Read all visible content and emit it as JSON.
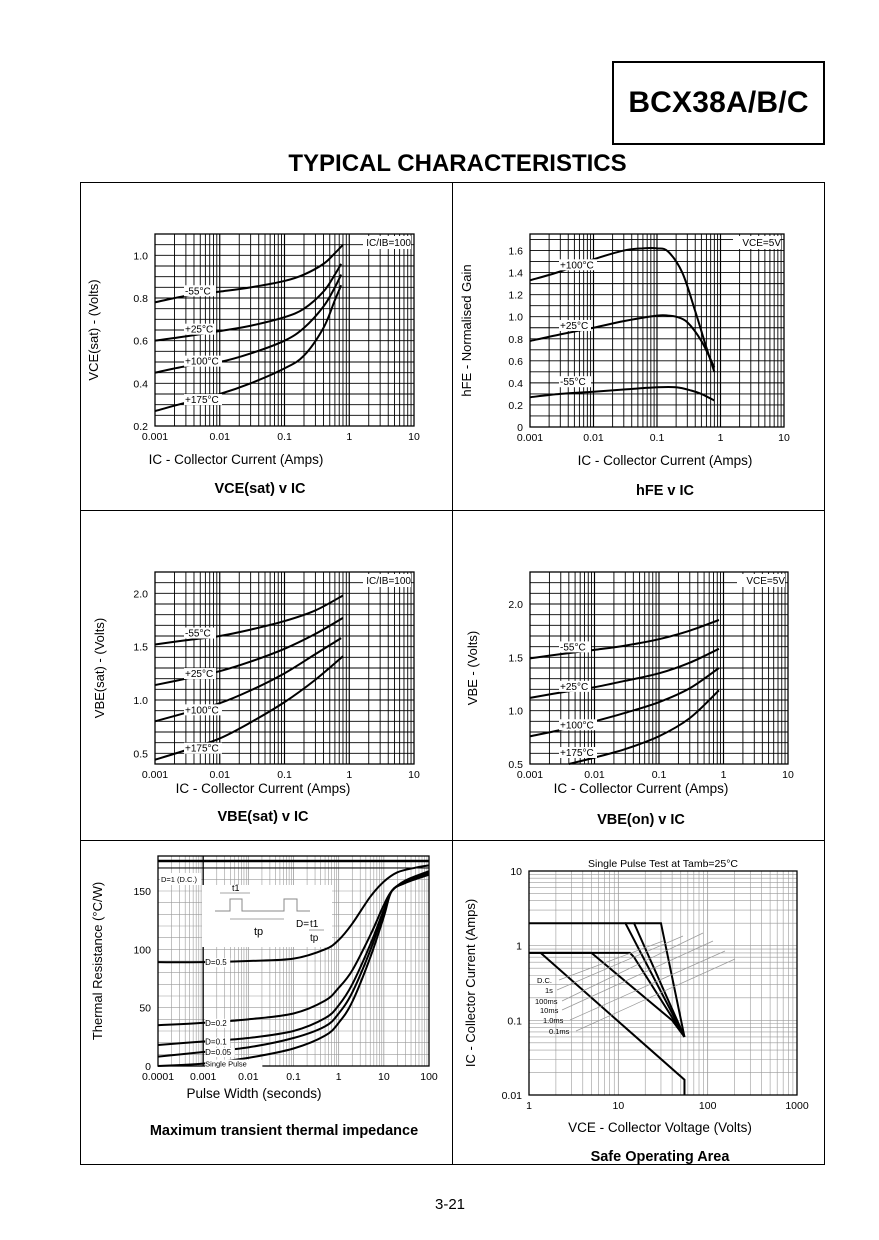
{
  "header": {
    "part_number": "BCX38A/B/C",
    "section_title": "TYPICAL CHARACTERISTICS"
  },
  "footer": {
    "page_number": "3-21"
  },
  "chart_data": [
    {
      "id": "vcesat",
      "type": "line",
      "title": "VCE(sat) v IC",
      "xlabel": "IC - Collector Current (Amps)",
      "ylabel": "VCE(sat) - (Volts)",
      "xscale": "log",
      "xlim": [
        0.001,
        10
      ],
      "ylim": [
        0.2,
        1.1
      ],
      "xticks": [
        "0.001",
        "0.01",
        "0.1",
        "1",
        "10"
      ],
      "yticks": [
        "0.2",
        "0.4",
        "0.6",
        "0.8",
        "1.0"
      ],
      "ytick_values": [
        0.2,
        0.4,
        0.6,
        0.8,
        1.0
      ],
      "annotation": "IC/IB=100",
      "grid": true,
      "series": [
        {
          "name": "-55°C",
          "x": [
            0.001,
            0.003,
            0.01,
            0.03,
            0.1,
            0.2,
            0.4,
            0.6,
            0.8
          ],
          "y": [
            0.78,
            0.81,
            0.83,
            0.85,
            0.88,
            0.91,
            0.96,
            1.01,
            1.05
          ]
        },
        {
          "name": "+25°C",
          "x": [
            0.001,
            0.003,
            0.01,
            0.03,
            0.1,
            0.2,
            0.4,
            0.6,
            0.75
          ],
          "y": [
            0.6,
            0.62,
            0.645,
            0.67,
            0.71,
            0.75,
            0.83,
            0.91,
            0.96
          ]
        },
        {
          "name": "+100°C",
          "x": [
            0.001,
            0.003,
            0.01,
            0.03,
            0.1,
            0.2,
            0.4,
            0.6,
            0.75
          ],
          "y": [
            0.45,
            0.48,
            0.5,
            0.54,
            0.6,
            0.66,
            0.76,
            0.85,
            0.91
          ]
        },
        {
          "name": "+175°C",
          "x": [
            0.001,
            0.003,
            0.01,
            0.03,
            0.1,
            0.2,
            0.4,
            0.6,
            0.75
          ],
          "y": [
            0.27,
            0.31,
            0.35,
            0.4,
            0.47,
            0.53,
            0.66,
            0.79,
            0.86
          ]
        }
      ]
    },
    {
      "id": "hfe",
      "type": "line",
      "title": "hFE v IC",
      "xlabel": "IC - Collector Current (Amps)",
      "ylabel": "hFE - Normalised Gain",
      "xscale": "log",
      "xlim": [
        0.001,
        10
      ],
      "ylim": [
        0,
        1.75
      ],
      "xticks": [
        "0.001",
        "0.01",
        "0.1",
        "1",
        "10"
      ],
      "yticks": [
        "0",
        "0.2",
        "0.4",
        "0.6",
        "0.8",
        "1.0",
        "1.2",
        "1.4",
        "1.6"
      ],
      "ytick_values": [
        0,
        0.2,
        0.4,
        0.6,
        0.8,
        1.0,
        1.2,
        1.4,
        1.6
      ],
      "annotation": "VCE=5V",
      "grid": true,
      "series": [
        {
          "name": "+100°C",
          "x": [
            0.001,
            0.003,
            0.01,
            0.03,
            0.06,
            0.1,
            0.15,
            0.25,
            0.4,
            0.6,
            0.8
          ],
          "y": [
            1.33,
            1.41,
            1.52,
            1.6,
            1.62,
            1.62,
            1.59,
            1.4,
            1.05,
            0.72,
            0.5
          ]
        },
        {
          "name": "+25°C",
          "x": [
            0.001,
            0.003,
            0.01,
            0.03,
            0.1,
            0.15,
            0.2,
            0.3,
            0.5,
            0.8
          ],
          "y": [
            0.78,
            0.84,
            0.9,
            0.96,
            1.01,
            1.01,
            1.0,
            0.95,
            0.78,
            0.54
          ]
        },
        {
          "name": "-55°C",
          "x": [
            0.001,
            0.003,
            0.01,
            0.03,
            0.1,
            0.2,
            0.35,
            0.5,
            0.8
          ],
          "y": [
            0.27,
            0.3,
            0.32,
            0.34,
            0.36,
            0.36,
            0.33,
            0.3,
            0.24
          ]
        }
      ]
    },
    {
      "id": "vbesat",
      "type": "line",
      "title": "VBE(sat) v IC",
      "xlabel": "IC - Collector Current (Amps)",
      "ylabel": "VBE(sat) - (Volts)",
      "xscale": "log",
      "xlim": [
        0.001,
        10
      ],
      "ylim": [
        0.4,
        2.2
      ],
      "xticks": [
        "0.001",
        "0.01",
        "0.1",
        "1",
        "10"
      ],
      "yticks": [
        "0.5",
        "1.0",
        "1.5",
        "2.0"
      ],
      "ytick_values": [
        0.5,
        1.0,
        1.5,
        2.0
      ],
      "annotation": "IC/IB=100",
      "grid": true,
      "series": [
        {
          "name": "-55°C",
          "x": [
            0.001,
            0.003,
            0.01,
            0.03,
            0.1,
            0.3,
            0.8
          ],
          "y": [
            1.52,
            1.56,
            1.6,
            1.66,
            1.74,
            1.84,
            1.98
          ]
        },
        {
          "name": "+25°C",
          "x": [
            0.001,
            0.003,
            0.01,
            0.03,
            0.1,
            0.3,
            0.8
          ],
          "y": [
            1.14,
            1.2,
            1.27,
            1.36,
            1.48,
            1.62,
            1.77
          ]
        },
        {
          "name": "+100°C",
          "x": [
            0.001,
            0.003,
            0.01,
            0.03,
            0.1,
            0.3,
            0.75
          ],
          "y": [
            0.8,
            0.88,
            0.97,
            1.09,
            1.25,
            1.43,
            1.58
          ]
        },
        {
          "name": "+175°C",
          "x": [
            0.001,
            0.003,
            0.01,
            0.03,
            0.1,
            0.3,
            0.8
          ],
          "y": [
            0.44,
            0.53,
            0.64,
            0.79,
            0.98,
            1.19,
            1.41
          ]
        }
      ]
    },
    {
      "id": "vbeon",
      "type": "line",
      "title": "VBE(on) v IC",
      "xlabel": "IC - Collector Current (Amps)",
      "ylabel": "VBE - (Volts)",
      "xscale": "log",
      "xlim": [
        0.001,
        10
      ],
      "ylim": [
        0.5,
        2.3
      ],
      "xticks": [
        "0.001",
        "0.01",
        "0.1",
        "1",
        "10"
      ],
      "yticks": [
        "0.5",
        "1.0",
        "1.5",
        "2.0"
      ],
      "ytick_values": [
        0.5,
        1.0,
        1.5,
        2.0
      ],
      "annotation": "VCE=5V",
      "grid": true,
      "series": [
        {
          "name": "-55°C",
          "x": [
            0.001,
            0.003,
            0.01,
            0.03,
            0.1,
            0.3,
            0.85
          ],
          "y": [
            1.49,
            1.53,
            1.57,
            1.61,
            1.67,
            1.75,
            1.85
          ]
        },
        {
          "name": "+25°C",
          "x": [
            0.001,
            0.003,
            0.01,
            0.03,
            0.1,
            0.3,
            0.85
          ],
          "y": [
            1.12,
            1.17,
            1.22,
            1.28,
            1.35,
            1.45,
            1.58
          ]
        },
        {
          "name": "+100°C",
          "x": [
            0.001,
            0.003,
            0.01,
            0.03,
            0.1,
            0.3,
            0.85
          ],
          "y": [
            0.76,
            0.82,
            0.9,
            0.98,
            1.08,
            1.21,
            1.4
          ]
        },
        {
          "name": "+175°C",
          "x": [
            0.004,
            0.01,
            0.03,
            0.1,
            0.3,
            0.85
          ],
          "y": [
            0.5,
            0.56,
            0.64,
            0.76,
            0.93,
            1.19
          ]
        }
      ]
    },
    {
      "id": "thermal",
      "type": "line",
      "title": "Maximum transient thermal impedance",
      "xlabel": "Pulse Width (seconds)",
      "ylabel": "Thermal Resistance (°C/W)",
      "xscale": "log",
      "xlim": [
        0.0001,
        100
      ],
      "ylim": [
        0,
        180
      ],
      "xticks": [
        "0.0001",
        "0.001",
        "0.01",
        "0.1",
        "1",
        "10",
        "100"
      ],
      "yticks": [
        "0",
        "50",
        "100",
        "150"
      ],
      "ytick_values": [
        0,
        50,
        100,
        150
      ],
      "grid": true,
      "dc_line": {
        "name": "D=1 (D.C.)",
        "y": 175
      },
      "inset": {
        "t1": "t1",
        "tp": "tp",
        "formula_lhs": "D=",
        "formula_num": "t1",
        "formula_den": "tp"
      },
      "series": [
        {
          "name": "D=0.5",
          "x": [
            0.0001,
            0.001,
            0.01,
            0.1,
            0.5,
            1,
            2,
            5,
            10,
            20,
            50,
            100
          ],
          "y": [
            89,
            89,
            90,
            92,
            100,
            108,
            122,
            145,
            158,
            166,
            170,
            172
          ]
        },
        {
          "name": "D=0.2",
          "x": [
            0.0001,
            0.001,
            0.01,
            0.1,
            0.5,
            1,
            2,
            5,
            10,
            15,
            30,
            100
          ],
          "y": [
            35,
            37,
            40,
            45,
            56,
            67,
            82,
            112,
            138,
            150,
            159,
            167
          ]
        },
        {
          "name": "D=0.1",
          "x": [
            0.0001,
            0.001,
            0.01,
            0.1,
            0.5,
            1,
            2,
            5,
            10,
            15,
            30,
            100
          ],
          "y": [
            18,
            21,
            24,
            30,
            41,
            52,
            70,
            104,
            134,
            150,
            158,
            166
          ]
        },
        {
          "name": "D=0.05",
          "x": [
            0.0001,
            0.001,
            0.01,
            0.1,
            0.5,
            1,
            2,
            5,
            10,
            15,
            30,
            100
          ],
          "y": [
            8,
            12,
            16,
            24,
            34,
            45,
            63,
            99,
            132,
            150,
            157,
            165
          ]
        },
        {
          "name": "Single Pulse",
          "x": [
            0.0001,
            0.001,
            0.01,
            0.1,
            0.5,
            1,
            2,
            5,
            10,
            15,
            30,
            100
          ],
          "y": [
            0,
            2,
            7,
            15,
            26,
            37,
            55,
            93,
            128,
            150,
            157,
            164
          ]
        }
      ]
    },
    {
      "id": "soa",
      "type": "line",
      "title": "Safe Operating Area",
      "subtitle": "Single Pulse Test at Tamb=25°C",
      "xlabel": "VCE - Collector Voltage (Volts)",
      "ylabel": "IC - Collector Current (Amps)",
      "xscale": "log",
      "yscale": "log",
      "xlim": [
        1,
        1000
      ],
      "ylim": [
        0.01,
        10
      ],
      "xticks": [
        "1",
        "10",
        "100",
        "1000"
      ],
      "yticks": [
        "0.01",
        "0.1",
        "1",
        "10"
      ],
      "ytick_values": [
        0.01,
        0.1,
        1,
        10
      ],
      "grid": true,
      "legend_labels": [
        "D.C.",
        "1s",
        "100ms",
        "10ms",
        "1.0ms",
        "0.1ms"
      ],
      "series": [
        {
          "name": "D.C.",
          "x": [
            1.35,
            55,
            55
          ],
          "y": [
            0.8,
            0.016,
            0.01
          ]
        },
        {
          "name": "1s",
          "x": [
            1,
            5,
            40,
            55
          ],
          "y": [
            0.8,
            0.8,
            0.1,
            0.06
          ]
        },
        {
          "name": "100ms",
          "x": [
            1,
            13.5,
            15,
            55
          ],
          "y": [
            0.8,
            0.8,
            0.7,
            0.06
          ]
        },
        {
          "name": "10ms",
          "x": [
            1,
            12,
            55
          ],
          "y": [
            2.0,
            2.0,
            0.06
          ]
        },
        {
          "name": "1.0ms",
          "x": [
            12,
            15,
            55
          ],
          "y": [
            2.0,
            2.0,
            0.06
          ]
        },
        {
          "name": "0.1ms",
          "x": [
            15,
            30,
            55
          ],
          "y": [
            2.0,
            2.0,
            0.06
          ]
        }
      ]
    }
  ]
}
